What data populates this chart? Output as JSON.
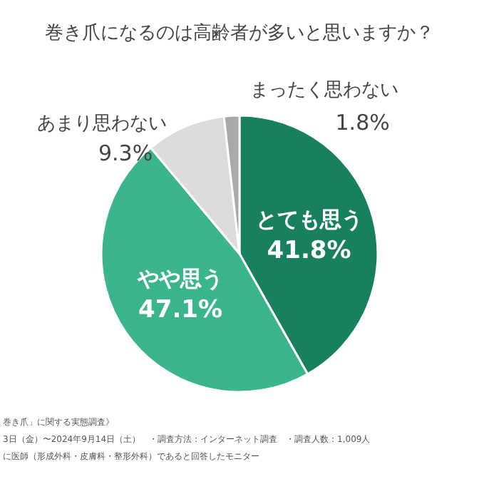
{
  "chart_data": {
    "type": "pie",
    "title": "巻き爪になるのは高齢者が多いと思いますか？",
    "categories": [
      "とても思う",
      "やや思う",
      "あまり思わない",
      "まったく思わない"
    ],
    "values": [
      41.8,
      47.1,
      9.3,
      1.8
    ],
    "colors": [
      "#19805d",
      "#3bb58b",
      "#dcdcdc",
      "#a9a9a9"
    ],
    "value_labels": [
      "41.8%",
      "47.1%",
      "9.3%",
      "1.8%"
    ],
    "annotations": [
      "巻き爪」に関する実態調査》",
      "3日（金）〜2024年9月14日（土）　・調査方法：インターネット調査　・調査人数：1,009人",
      "に医師（形成外科・皮膚科・整形外科）であると回答したモニター"
    ]
  }
}
